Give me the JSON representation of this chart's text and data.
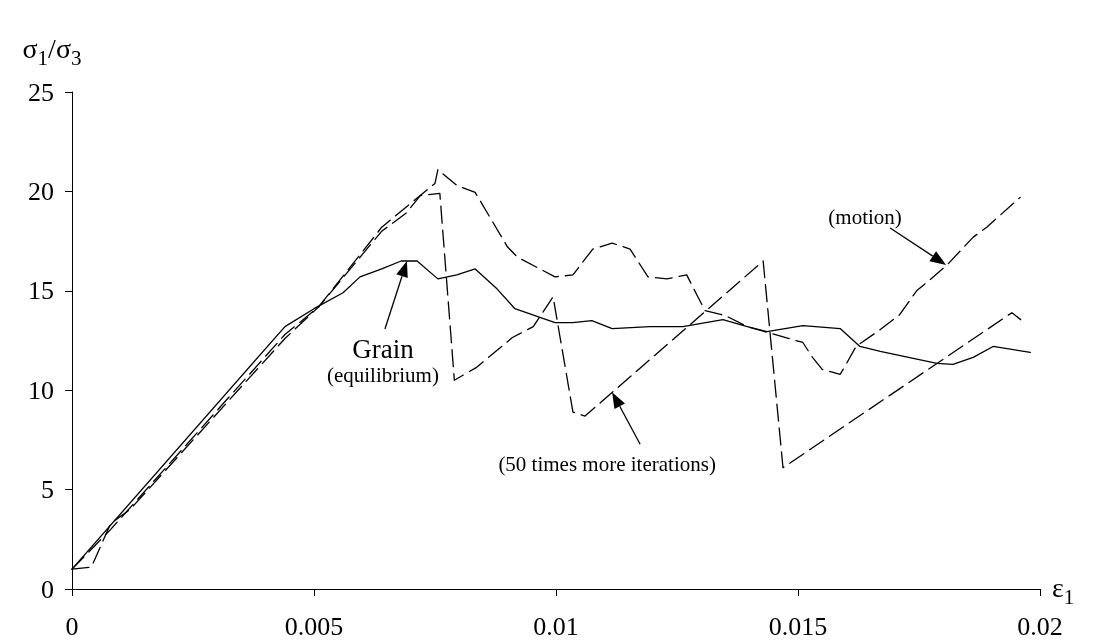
{
  "chart_data": {
    "type": "line",
    "xlabel": "ε$_{1}$",
    "ylabel": "σ$_{1}$/σ$_{3}$",
    "xlim": [
      0,
      0.02
    ],
    "xticks": [
      0,
      0.005,
      0.01,
      0.015,
      0.02
    ],
    "ylim": [
      0,
      25
    ],
    "yticks": [
      0,
      5,
      10,
      15,
      20,
      25
    ],
    "grid": false,
    "marker": "none",
    "series": [
      {
        "color": "#000000",
        "line_style": "solid",
        "x": [
          0,
          0.0044,
          0.005,
          0.0056,
          0.00595,
          0.0064,
          0.0068,
          0.00713,
          0.00756,
          0.00795,
          0.00833,
          0.00878,
          0.00915,
          0.00998,
          0.01035,
          0.01074,
          0.01116,
          0.01194,
          0.01262,
          0.01345,
          0.01395,
          0.01436,
          0.0151,
          0.01587,
          0.01628,
          0.0167,
          0.01787,
          0.0182,
          0.01862,
          0.01903,
          0.0198
        ],
        "values": [
          1,
          13.2,
          14.1,
          14.9,
          15.7,
          16.1,
          16.5,
          16.5,
          15.6,
          15.8,
          16.1,
          15.1,
          14.1,
          13.4,
          13.4,
          13.5,
          13.1,
          13.2,
          13.2,
          13.55,
          13.2,
          12.95,
          13.25,
          13.1,
          12.2,
          11.95,
          11.35,
          11.3,
          11.65,
          12.2,
          11.9
        ]
      },
      {
        "color": "#000000",
        "line_style": "dashed",
        "x": [
          0,
          0.0004,
          0.0008,
          0.0012,
          0.0044,
          0.0051,
          0.0064,
          0.0069,
          0.0072,
          0.0076,
          0.0079,
          0.00836,
          0.0091,
          0.00953,
          0.00994,
          0.01035,
          0.0106,
          0.01428,
          0.01469,
          0.01942,
          0.0196
        ],
        "values": [
          1,
          1.1,
          3.3,
          4.0,
          12.6,
          14.2,
          18.0,
          18.9,
          19.8,
          19.9,
          10.5,
          11.15,
          12.65,
          13.2,
          14.7,
          8.9,
          8.7,
          16.5,
          6.1,
          13.9,
          13.55
        ]
      },
      {
        "color": "#000000",
        "line_style": "dashed",
        "x": [
          0,
          0.0008,
          0.0044,
          0.0051,
          0.0064,
          0.0075,
          0.00756,
          0.00795,
          0.00833,
          0.009,
          0.0092,
          0.00998,
          0.01035,
          0.01076,
          0.01116,
          0.01153,
          0.0119,
          0.01229,
          0.0127,
          0.01293,
          0.01308,
          0.0135,
          0.01395,
          0.0151,
          0.0153,
          0.0155,
          0.01587,
          0.01597,
          0.0162,
          0.0167,
          0.0171,
          0.01745,
          0.0177,
          0.01808,
          0.01862,
          0.0189,
          0.01959
        ],
        "values": [
          1,
          3.0,
          12.8,
          14.2,
          18.2,
          20.4,
          21.1,
          20.3,
          19.95,
          17.2,
          16.7,
          15.7,
          15.8,
          17.1,
          17.4,
          17.1,
          15.7,
          15.6,
          15.8,
          14.7,
          14.0,
          13.75,
          13.2,
          12.4,
          11.65,
          11.05,
          10.8,
          11.2,
          12.2,
          13.05,
          13.8,
          15.0,
          15.5,
          16.3,
          17.7,
          18.2,
          19.7
        ]
      }
    ],
    "annotations": [
      {
        "text": "Grain\n(equilibrium)",
        "x": 0.00692,
        "y": 16.5
      },
      {
        "text": "(50 times more iterations)",
        "x": 0.01116,
        "y": 9.9
      },
      {
        "text": "(motion)",
        "x": 0.01806,
        "y": 16.3
      }
    ]
  }
}
